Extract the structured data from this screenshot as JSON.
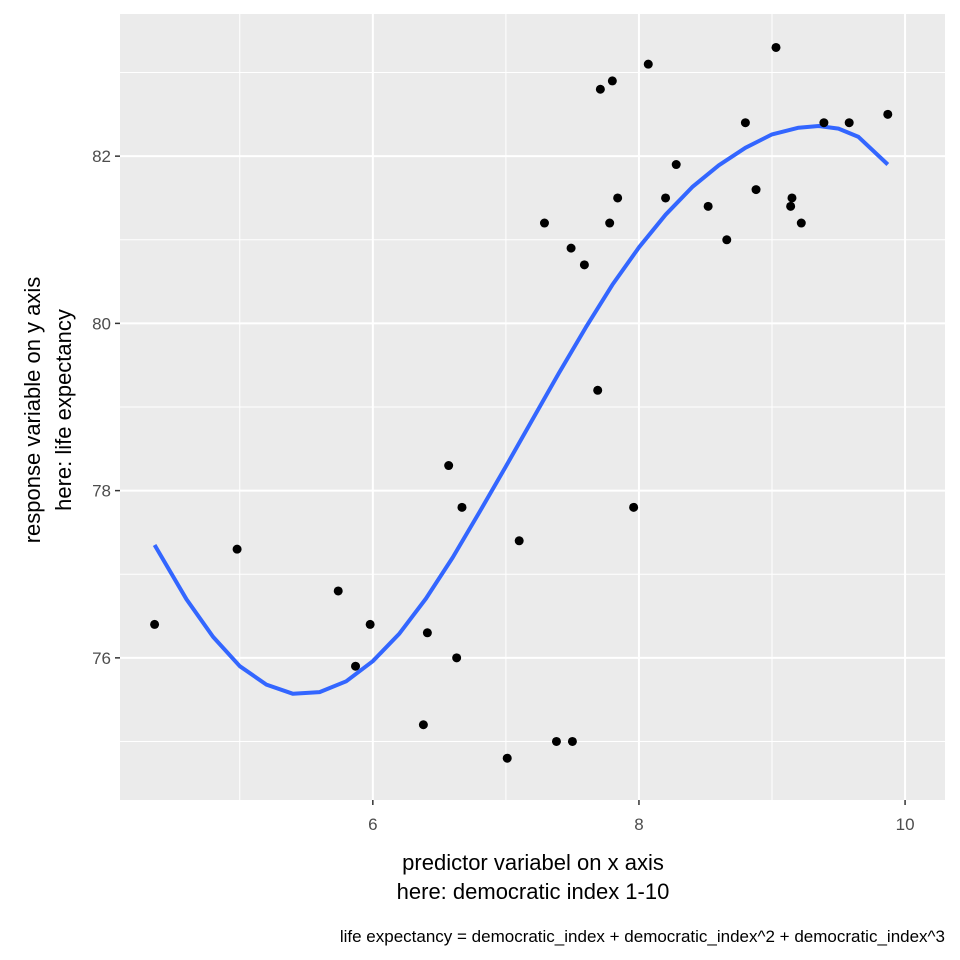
{
  "chart_data": {
    "type": "scatter",
    "xlabel_lines": [
      "predictor variabel on x axis",
      "here: democratic index 1-10"
    ],
    "ylabel_lines": [
      "response variable on y axis",
      "here: life expectancy"
    ],
    "caption": "life expectancy = democratic_index + democratic_index^2 + democratic_index^3",
    "xlim": [
      4.1,
      10.3
    ],
    "ylim": [
      74.3,
      83.7
    ],
    "x_ticks": [
      6,
      8,
      10
    ],
    "y_ticks": [
      76,
      78,
      80,
      82
    ],
    "x_tick_labels": [
      "6",
      "8",
      "10"
    ],
    "y_tick_labels": [
      "76",
      "78",
      "80",
      "82"
    ],
    "grid": true,
    "legend": "none",
    "colors": {
      "panel_background": "#ebebeb",
      "grid": "#ffffff",
      "points": "#000000",
      "fit_line": "#3366ff"
    },
    "series": [
      {
        "kind": "points",
        "points": [
          {
            "x": 4.36,
            "y": 76.4
          },
          {
            "x": 4.98,
            "y": 77.3
          },
          {
            "x": 5.74,
            "y": 76.8
          },
          {
            "x": 5.87,
            "y": 75.9
          },
          {
            "x": 5.98,
            "y": 76.4
          },
          {
            "x": 6.38,
            "y": 75.2
          },
          {
            "x": 6.41,
            "y": 76.3
          },
          {
            "x": 6.57,
            "y": 78.3
          },
          {
            "x": 6.63,
            "y": 76.0
          },
          {
            "x": 6.67,
            "y": 77.8
          },
          {
            "x": 7.01,
            "y": 74.8
          },
          {
            "x": 7.1,
            "y": 77.4
          },
          {
            "x": 7.29,
            "y": 81.2
          },
          {
            "x": 7.38,
            "y": 75.0
          },
          {
            "x": 7.49,
            "y": 80.9
          },
          {
            "x": 7.5,
            "y": 75.0
          },
          {
            "x": 7.59,
            "y": 80.7
          },
          {
            "x": 7.69,
            "y": 79.2
          },
          {
            "x": 7.71,
            "y": 82.8
          },
          {
            "x": 7.78,
            "y": 81.2
          },
          {
            "x": 7.8,
            "y": 82.9
          },
          {
            "x": 7.84,
            "y": 81.5
          },
          {
            "x": 7.96,
            "y": 77.8
          },
          {
            "x": 8.07,
            "y": 83.1
          },
          {
            "x": 8.2,
            "y": 81.5
          },
          {
            "x": 8.28,
            "y": 81.9
          },
          {
            "x": 8.52,
            "y": 81.4
          },
          {
            "x": 8.66,
            "y": 81.0
          },
          {
            "x": 8.8,
            "y": 82.4
          },
          {
            "x": 8.88,
            "y": 81.6
          },
          {
            "x": 9.03,
            "y": 83.3
          },
          {
            "x": 9.14,
            "y": 81.4
          },
          {
            "x": 9.15,
            "y": 81.5
          },
          {
            "x": 9.22,
            "y": 81.2
          },
          {
            "x": 9.39,
            "y": 82.4
          },
          {
            "x": 9.58,
            "y": 82.4
          },
          {
            "x": 9.87,
            "y": 82.5
          }
        ]
      },
      {
        "kind": "line",
        "points": [
          {
            "x": 4.36,
            "y": 77.35
          },
          {
            "x": 4.6,
            "y": 76.7
          },
          {
            "x": 4.8,
            "y": 76.25
          },
          {
            "x": 5.0,
            "y": 75.9
          },
          {
            "x": 5.2,
            "y": 75.68
          },
          {
            "x": 5.4,
            "y": 75.57
          },
          {
            "x": 5.6,
            "y": 75.59
          },
          {
            "x": 5.8,
            "y": 75.72
          },
          {
            "x": 6.0,
            "y": 75.96
          },
          {
            "x": 6.2,
            "y": 76.29
          },
          {
            "x": 6.4,
            "y": 76.71
          },
          {
            "x": 6.6,
            "y": 77.2
          },
          {
            "x": 6.8,
            "y": 77.74
          },
          {
            "x": 7.0,
            "y": 78.29
          },
          {
            "x": 7.2,
            "y": 78.85
          },
          {
            "x": 7.4,
            "y": 79.41
          },
          {
            "x": 7.6,
            "y": 79.95
          },
          {
            "x": 7.8,
            "y": 80.46
          },
          {
            "x": 8.0,
            "y": 80.91
          },
          {
            "x": 8.2,
            "y": 81.3
          },
          {
            "x": 8.4,
            "y": 81.63
          },
          {
            "x": 8.6,
            "y": 81.89
          },
          {
            "x": 8.8,
            "y": 82.1
          },
          {
            "x": 9.0,
            "y": 82.26
          },
          {
            "x": 9.2,
            "y": 82.34
          },
          {
            "x": 9.35,
            "y": 82.36
          },
          {
            "x": 9.5,
            "y": 82.33
          },
          {
            "x": 9.65,
            "y": 82.23
          },
          {
            "x": 9.87,
            "y": 81.9
          }
        ]
      }
    ]
  }
}
